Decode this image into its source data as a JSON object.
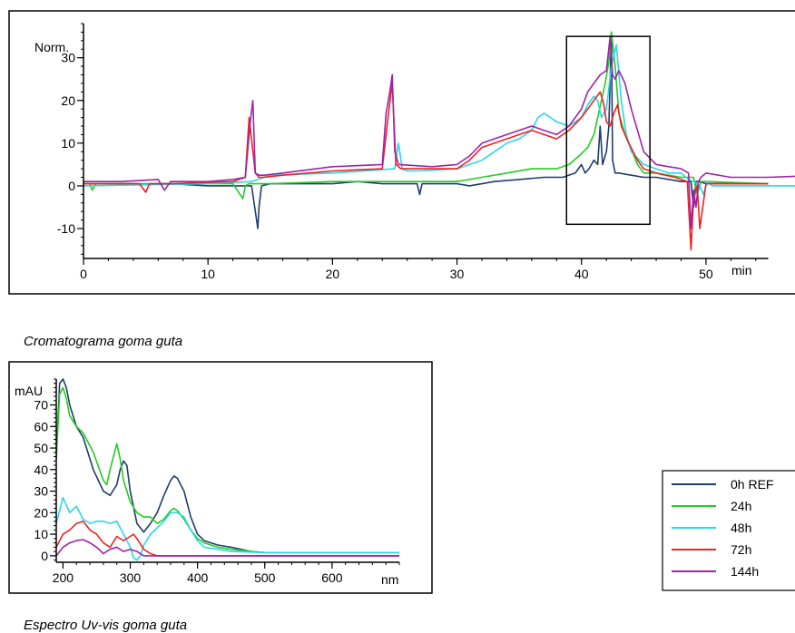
{
  "chart_data": [
    {
      "type": "line",
      "caption": "Cromatograma goma guta",
      "ylabel": "Norm.",
      "xlabel": "min",
      "xlim": [
        0,
        55
      ],
      "ylim": [
        -17,
        38
      ],
      "x_ticks": [
        0,
        10,
        20,
        30,
        40,
        50
      ],
      "x_tick_labels": [
        "0",
        "10",
        "20",
        "30",
        "40",
        "50"
      ],
      "y_ticks": [
        -10,
        0,
        10,
        20,
        30
      ],
      "y_tick_labels": [
        "-10",
        "0",
        "10",
        "20",
        "30"
      ],
      "grid": false,
      "highlight_region": {
        "x": [
          38.8,
          45.5
        ],
        "y": [
          -9,
          35
        ]
      },
      "series": [
        {
          "name": "0h REF",
          "color": "#1f3c6e",
          "x": [
            0,
            4,
            5,
            6,
            7,
            10,
            13.5,
            14.0,
            14.1,
            14.3,
            15,
            20,
            22,
            24,
            26.8,
            27.0,
            27.2,
            29,
            30,
            31,
            33,
            35,
            37,
            38.5,
            39.5,
            40,
            40.3,
            40.6,
            41,
            41.3,
            41.5,
            41.7,
            42,
            42.2,
            42.4,
            42.5,
            42.7,
            43,
            44,
            45,
            46,
            48,
            48.8,
            49.0,
            49.2,
            49.5,
            50,
            55
          ],
          "y": [
            0.5,
            0.5,
            0.3,
            0.5,
            0.5,
            0,
            0,
            -10,
            -5,
            0,
            0.5,
            0.5,
            1,
            0.5,
            0.5,
            -2,
            0.5,
            0.5,
            0.5,
            0,
            1,
            1.5,
            2,
            2,
            3,
            5,
            3,
            4,
            6,
            5,
            14,
            5,
            8,
            14,
            36,
            6,
            3,
            3,
            2.5,
            2,
            2,
            1,
            1,
            -5,
            1,
            1,
            0.5,
            0.5
          ]
        },
        {
          "name": "24h",
          "color": "#22cc22",
          "x": [
            0,
            0.5,
            0.7,
            1,
            5,
            7,
            12,
            12.8,
            13.0,
            13.3,
            15,
            20,
            24,
            28,
            30,
            32,
            34,
            36,
            38,
            39,
            39.8,
            40.5,
            41,
            41.3,
            41.6,
            41.9,
            42.2,
            42.4,
            42.7,
            43,
            43.5,
            44.5,
            45,
            46,
            48,
            49,
            49.3,
            49.6,
            50,
            55
          ],
          "y": [
            0.5,
            0.5,
            -1,
            0.5,
            0.5,
            0.5,
            0.5,
            -3,
            0,
            0.5,
            0.5,
            1,
            1,
            1,
            1,
            2,
            3,
            4,
            4,
            5,
            7,
            9,
            12,
            16,
            20,
            24,
            29,
            36,
            28,
            17,
            12,
            5,
            3,
            3,
            2,
            2,
            -2,
            1,
            1,
            0.5
          ]
        },
        {
          "name": "48h",
          "color": "#29d8e8",
          "x": [
            0,
            10,
            13.5,
            14.5,
            15,
            20,
            25,
            25.3,
            25.6,
            26,
            27,
            30,
            32,
            34,
            35,
            36,
            36.5,
            37,
            38,
            39,
            40,
            40.5,
            41,
            41.3,
            41.6,
            42,
            42.4,
            42.8,
            43.2,
            43.6,
            44,
            45,
            46,
            47,
            48,
            48.6,
            49,
            49.5,
            49.8,
            50.1,
            50.5,
            55,
            60
          ],
          "y": [
            0,
            0.5,
            1,
            2,
            2.5,
            3,
            4,
            10,
            4,
            3.5,
            3.5,
            4,
            6,
            10,
            11,
            13,
            16,
            17,
            15,
            14,
            16,
            19,
            21,
            20,
            16,
            18,
            28,
            33,
            20,
            12,
            8,
            5,
            4,
            3,
            3,
            1.5,
            1,
            0,
            -2,
            1,
            0,
            0,
            0
          ]
        },
        {
          "name": "72h",
          "color": "#ee2222",
          "x": [
            0,
            4.5,
            5.0,
            5.3,
            6,
            7,
            12,
            13.0,
            13.3,
            13.8,
            14.1,
            14.5,
            16,
            20,
            24,
            24.5,
            24.8,
            25.1,
            25.5,
            28,
            30,
            31,
            32,
            34,
            35,
            36,
            37,
            38,
            39,
            40,
            40.5,
            41,
            41.5,
            41.8,
            42,
            42.3,
            42.6,
            42.9,
            43.2,
            43.8,
            44.5,
            45,
            46,
            47.5,
            48.5,
            48.8,
            49.0,
            49.3,
            49.5,
            50,
            55
          ],
          "y": [
            0.5,
            0.5,
            -1.5,
            0.5,
            0.5,
            0.5,
            1,
            2,
            16,
            3,
            2,
            2,
            2.5,
            3.5,
            4,
            17,
            24,
            5,
            4,
            4,
            4,
            6,
            9,
            11,
            12,
            13,
            12,
            11,
            13,
            16,
            18,
            20,
            22,
            19,
            15,
            14,
            17,
            19,
            14,
            10,
            6,
            4,
            3,
            2,
            1,
            -15,
            -3,
            0,
            -10,
            0.5,
            0.5
          ]
        },
        {
          "name": "144h",
          "color": "#a023a8",
          "x": [
            0,
            3,
            6,
            6.5,
            7,
            10,
            12,
            13.0,
            13.4,
            13.6,
            13.8,
            14.1,
            14.5,
            16,
            20,
            24,
            24.3,
            24.6,
            24.8,
            25.0,
            25.3,
            28,
            30,
            31,
            32,
            34,
            35,
            36,
            37,
            38,
            39,
            40,
            40.5,
            41,
            41.5,
            42,
            42.3,
            42.5,
            42.7,
            43,
            43.5,
            44,
            45,
            46,
            48,
            48.6,
            48.8,
            49.0,
            49.2,
            49.4,
            49.6,
            50,
            52,
            55,
            59.5,
            60
          ],
          "y": [
            1,
            1,
            1.5,
            -1,
            1,
            1,
            1.5,
            2,
            15,
            20,
            3,
            2.5,
            2.5,
            3,
            4.5,
            5,
            17,
            22,
            26,
            8,
            5,
            4.5,
            5,
            7,
            10,
            12,
            13,
            14,
            13,
            12,
            14,
            18,
            22,
            24,
            26,
            27,
            35,
            26,
            25,
            27,
            24,
            18,
            8,
            5,
            4,
            3,
            -10,
            -1,
            -5,
            1,
            2,
            3,
            2,
            2,
            2.5,
            2.5
          ]
        }
      ],
      "legend": {
        "placement": "right",
        "entries": [
          "0h REF",
          "24h",
          "48h",
          "72h",
          "144h"
        ]
      }
    },
    {
      "type": "line",
      "caption": "Espectro Uv-vis goma guta",
      "ylabel": "mAU",
      "xlabel": "nm",
      "xlim": [
        190,
        700
      ],
      "ylim": [
        -3,
        82
      ],
      "x_ticks": [
        200,
        300,
        400,
        500,
        600
      ],
      "x_tick_labels": [
        "200",
        "300",
        "400",
        "500",
        "600"
      ],
      "y_ticks": [
        0,
        10,
        20,
        30,
        40,
        50,
        60,
        70
      ],
      "y_tick_labels": [
        "0",
        "10",
        "20",
        "30",
        "40",
        "50",
        "60",
        "70"
      ],
      "grid": false,
      "series": [
        {
          "name": "0h REF",
          "color": "#1f3c6e",
          "x": [
            190,
            195,
            200,
            205,
            210,
            220,
            230,
            245,
            260,
            270,
            280,
            285,
            290,
            295,
            300,
            310,
            320,
            330,
            340,
            350,
            360,
            365,
            370,
            380,
            390,
            400,
            410,
            430,
            450,
            480,
            500,
            550,
            600,
            700
          ],
          "y": [
            45,
            80,
            82,
            78,
            70,
            60,
            55,
            40,
            30,
            28,
            33,
            40,
            44,
            42,
            30,
            15,
            11,
            15,
            20,
            28,
            35,
            37,
            36,
            30,
            18,
            10,
            7,
            5,
            4,
            2,
            1.5,
            1.5,
            1.5,
            1.5
          ]
        },
        {
          "name": "24h",
          "color": "#22cc22",
          "x": [
            190,
            195,
            200,
            205,
            210,
            220,
            230,
            245,
            260,
            265,
            270,
            280,
            285,
            290,
            300,
            310,
            320,
            330,
            340,
            350,
            360,
            365,
            370,
            380,
            390,
            400,
            410,
            430,
            450,
            480,
            500,
            550,
            600,
            700
          ],
          "y": [
            45,
            75,
            78,
            73,
            65,
            60,
            57,
            48,
            35,
            33,
            40,
            52,
            45,
            35,
            25,
            20,
            18,
            18,
            15,
            17,
            21,
            22,
            21,
            17,
            12,
            8,
            6,
            4,
            3,
            2,
            1.5,
            1.5,
            1.5,
            1.5
          ]
        },
        {
          "name": "48h",
          "color": "#29d8e8",
          "x": [
            190,
            200,
            210,
            220,
            230,
            240,
            250,
            260,
            270,
            280,
            290,
            300,
            305,
            310,
            315,
            320,
            330,
            340,
            350,
            360,
            370,
            380,
            390,
            400,
            410,
            430,
            450,
            500,
            600,
            700
          ],
          "y": [
            15,
            27,
            20,
            23,
            17,
            15,
            16,
            16,
            15,
            16,
            10,
            4,
            -1,
            -2,
            0,
            5,
            10,
            13,
            16,
            20,
            20,
            18,
            12,
            7,
            4,
            3,
            2,
            1.5,
            1.5,
            1.5
          ]
        },
        {
          "name": "72h",
          "color": "#ee2222",
          "x": [
            190,
            200,
            210,
            220,
            230,
            240,
            250,
            260,
            270,
            280,
            290,
            300,
            305,
            310,
            320,
            330,
            340,
            350,
            400,
            450,
            500,
            600,
            700
          ],
          "y": [
            4,
            10,
            12,
            15,
            16,
            12,
            10,
            6,
            4,
            9,
            7,
            9,
            10,
            8,
            3,
            1,
            0,
            0,
            0,
            0,
            0,
            0,
            0
          ]
        },
        {
          "name": "144h",
          "color": "#a023a8",
          "x": [
            190,
            200,
            210,
            220,
            230,
            240,
            250,
            260,
            270,
            280,
            290,
            300,
            310,
            320,
            330,
            350,
            400,
            500,
            600,
            700
          ],
          "y": [
            0,
            4,
            6,
            7,
            7.5,
            6,
            4,
            1,
            3,
            4,
            2,
            3,
            2,
            0,
            0,
            0,
            0,
            0,
            0,
            0
          ]
        }
      ]
    }
  ]
}
